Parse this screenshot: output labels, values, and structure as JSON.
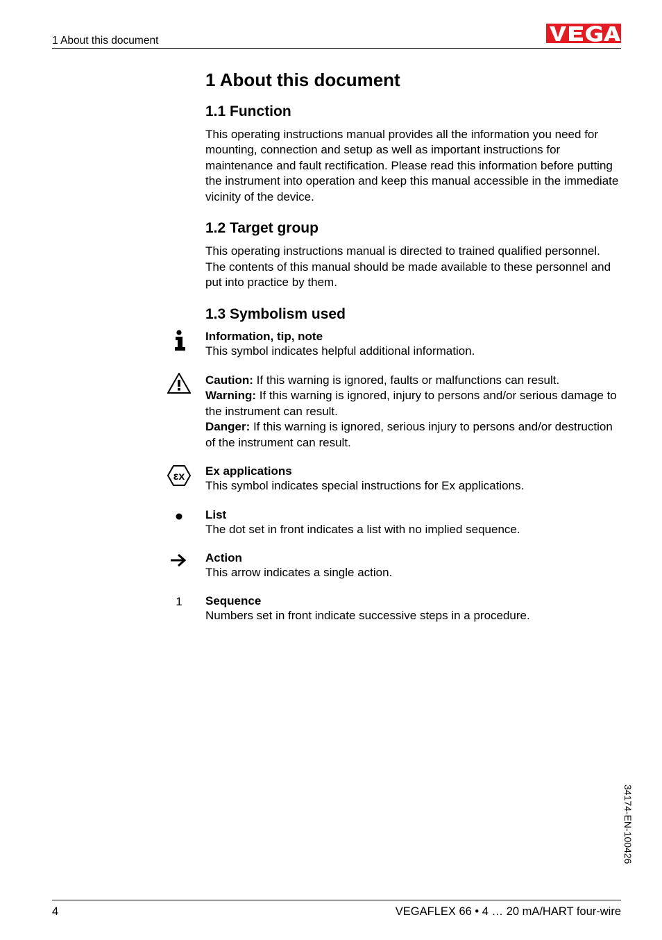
{
  "header": {
    "left": "1  About this document",
    "logo": {
      "text": "VEGA",
      "bg": "#e31b23",
      "fg": "#ffffff"
    }
  },
  "h1": "1   About this document",
  "sections": [
    {
      "h2": "1.1   Function",
      "body": "This operating instructions manual provides all the information you need for mounting, connection and setup as well as important instructions for maintenance and fault rectification. Please read this information before putting the instrument into operation and keep this manual accessible in the immediate vicinity of the device."
    },
    {
      "h2": "1.2   Target group",
      "body": "This operating instructions manual is directed to trained qualified personnel. The contents of this manual should be made available to these personnel and put into practice by them."
    },
    {
      "h2": "1.3   Symbolism used"
    }
  ],
  "symbols": [
    {
      "icon": "info",
      "title": "Information, tip, note",
      "body": "This symbol indicates helpful additional information."
    },
    {
      "icon": "warning",
      "lines": [
        {
          "label": "Caution:",
          "text": " If this warning is ignored, faults or malfunctions can result."
        },
        {
          "label": "Warning:",
          "text": " If this warning is ignored, injury to persons and/or serious damage to the instrument can result."
        },
        {
          "label": "Danger:",
          "text": " If this warning is ignored, serious injury to persons and/or destruction of the instrument can result."
        }
      ]
    },
    {
      "icon": "ex",
      "title": "Ex applications",
      "body": "This symbol indicates special instructions for Ex applications."
    },
    {
      "icon": "dot",
      "title": "List",
      "body": "The dot set in front indicates a list with no implied sequence."
    },
    {
      "icon": "arrow",
      "title": "Action",
      "body": "This arrow indicates a single action."
    },
    {
      "icon": "one",
      "title": "Sequence",
      "body": "Numbers set in front indicate successive steps in a procedure."
    }
  ],
  "footer": {
    "page": "4",
    "right": "VEGAFLEX 66 • 4 … 20 mA/HART four-wire",
    "docnum": "34174-EN-100426"
  },
  "icons_svg": {
    "info": "<svg width='26' height='30' viewBox='0 0 26 30'><circle cx='13' cy='4' r='3.6' fill='#000'/><rect x='8' y='10' width='10' height='5' fill='#000'/><rect x='11' y='10' width='7' height='15' fill='#000'/><rect x='7' y='25' width='15' height='5' fill='#000'/></svg>",
    "warning": "<svg width='34' height='30' viewBox='0 0 34 30'><polygon points='17,1 33,29 1,29' fill='none' stroke='#000' stroke-width='2'/><rect x='15.2' y='10' width='3.6' height='10' fill='#000'/><rect x='15.2' y='22' width='3.6' height='3.6' fill='#000'/></svg>",
    "ex": "<svg width='34' height='32' viewBox='0 0 34 32'><polygon points='9,2 25,2 33,16 25,30 9,30 1,16' fill='none' stroke='#000' stroke-width='2'/><text x='17' y='22' font-family='Arial' font-size='16' font-weight='bold' text-anchor='middle' fill='#000'>εx</text></svg>",
    "dot": "<svg width='20' height='20' viewBox='0 0 20 20'><circle cx='10' cy='10' r='4.5' fill='#000'/></svg>",
    "arrow": "<svg width='28' height='22' viewBox='0 0 28 22'><line x1='2' y1='11' x2='20' y2='11' stroke='#000' stroke-width='3'/><polyline points='13,3 22,11 13,19' fill='none' stroke='#000' stroke-width='3'/></svg>",
    "one": "1"
  }
}
